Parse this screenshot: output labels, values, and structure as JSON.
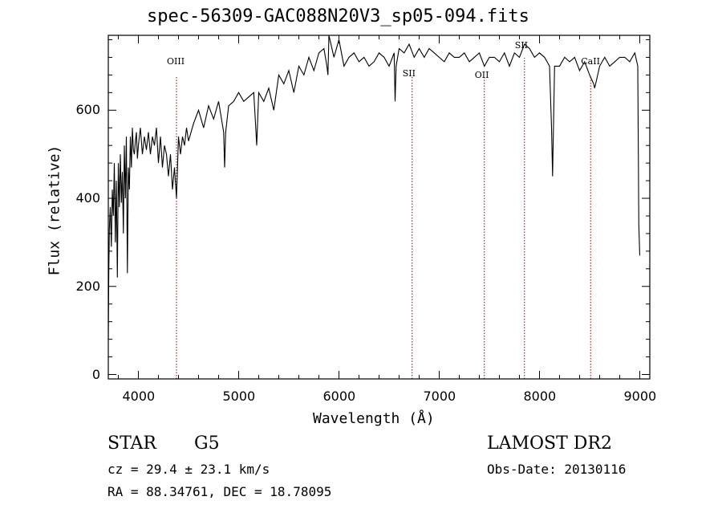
{
  "chart_data": {
    "type": "line",
    "title": "spec-56309-GAC088N20V3_sp05-094.fits",
    "xlabel": "Wavelength (Å)",
    "ylabel": "Flux (relative)",
    "xlim": [
      3700,
      9100
    ],
    "ylim": [
      -10,
      770
    ],
    "xticks": [
      4000,
      5000,
      6000,
      7000,
      8000,
      9000
    ],
    "yticks": [
      0,
      200,
      400,
      600
    ],
    "colors": {
      "spectrum": "#000000",
      "lines": "#8b0000",
      "axes": "#000000"
    },
    "series": [
      {
        "x": [
          3700,
          3705,
          3710,
          3720,
          3730,
          3740,
          3750,
          3760,
          3770,
          3780,
          3790,
          3800,
          3810,
          3820,
          3830,
          3840,
          3850,
          3860,
          3870,
          3880,
          3890,
          3900,
          3910,
          3920,
          3930,
          3940,
          3950,
          3960,
          3970,
          3980,
          3990,
          4000,
          4020,
          4040,
          4060,
          4080,
          4100,
          4120,
          4140,
          4160,
          4180,
          4200,
          4220,
          4240,
          4260,
          4280,
          4300,
          4320,
          4340,
          4360,
          4380,
          4400,
          4420,
          4440,
          4460,
          4480,
          4500,
          4550,
          4600,
          4650,
          4700,
          4750,
          4800,
          4850,
          4860,
          4870,
          4900,
          4950,
          5000,
          5050,
          5100,
          5150,
          5170,
          5180,
          5200,
          5250,
          5300,
          5350,
          5400,
          5450,
          5500,
          5550,
          5600,
          5650,
          5700,
          5750,
          5800,
          5850,
          5880,
          5890,
          5900,
          5950,
          6000,
          6050,
          6100,
          6150,
          6200,
          6250,
          6300,
          6350,
          6400,
          6450,
          6500,
          6550,
          6560,
          6570,
          6600,
          6650,
          6700,
          6750,
          6800,
          6850,
          6900,
          6950,
          7000,
          7050,
          7100,
          7150,
          7200,
          7250,
          7300,
          7350,
          7400,
          7450,
          7500,
          7550,
          7600,
          7650,
          7700,
          7750,
          7800,
          7850,
          7900,
          7950,
          8000,
          8050,
          8100,
          8120,
          8130,
          8150,
          8200,
          8250,
          8300,
          8350,
          8400,
          8450,
          8500,
          8540,
          8550,
          8600,
          8650,
          8700,
          8750,
          8800,
          8850,
          8900,
          8950,
          8980,
          8990,
          9000
        ],
        "y": [
          80,
          230,
          330,
          380,
          290,
          420,
          360,
          480,
          300,
          440,
          220,
          480,
          380,
          500,
          390,
          460,
          320,
          520,
          400,
          540,
          230,
          470,
          420,
          540,
          470,
          560,
          510,
          500,
          530,
          550,
          490,
          520,
          560,
          500,
          540,
          510,
          550,
          500,
          540,
          520,
          560,
          480,
          540,
          470,
          520,
          500,
          450,
          500,
          420,
          470,
          400,
          540,
          500,
          540,
          520,
          560,
          530,
          570,
          600,
          560,
          610,
          580,
          620,
          550,
          470,
          550,
          610,
          620,
          640,
          620,
          630,
          640,
          560,
          520,
          640,
          620,
          650,
          600,
          680,
          660,
          690,
          640,
          700,
          680,
          720,
          690,
          730,
          740,
          700,
          680,
          770,
          720,
          760,
          700,
          720,
          730,
          710,
          720,
          700,
          710,
          730,
          720,
          700,
          730,
          620,
          700,
          740,
          730,
          750,
          720,
          740,
          720,
          740,
          730,
          720,
          710,
          730,
          720,
          720,
          730,
          710,
          720,
          730,
          700,
          720,
          720,
          710,
          730,
          700,
          730,
          720,
          750,
          740,
          720,
          730,
          720,
          700,
          560,
          450,
          700,
          700,
          720,
          710,
          720,
          690,
          710,
          680,
          660,
          650,
          700,
          720,
          700,
          710,
          720,
          720,
          710,
          730,
          700,
          340,
          270
        ]
      }
    ],
    "markers": [
      {
        "label": "OIII",
        "x": 4380
      },
      {
        "label": "SII",
        "x": 6730
      },
      {
        "label": "OII",
        "x": 7450
      },
      {
        "label": "SII",
        "x": 7850
      },
      {
        "label": "CaII",
        "x": 8510
      }
    ]
  },
  "footer": {
    "class": "STAR",
    "subclass": "G5",
    "redshift": "cz = 29.4 ± 23.1 km/s",
    "coords": "RA =  88.34761, DEC =  18.78095",
    "survey": "LAMOST DR2",
    "obs_date": "Obs-Date: 20130116"
  }
}
